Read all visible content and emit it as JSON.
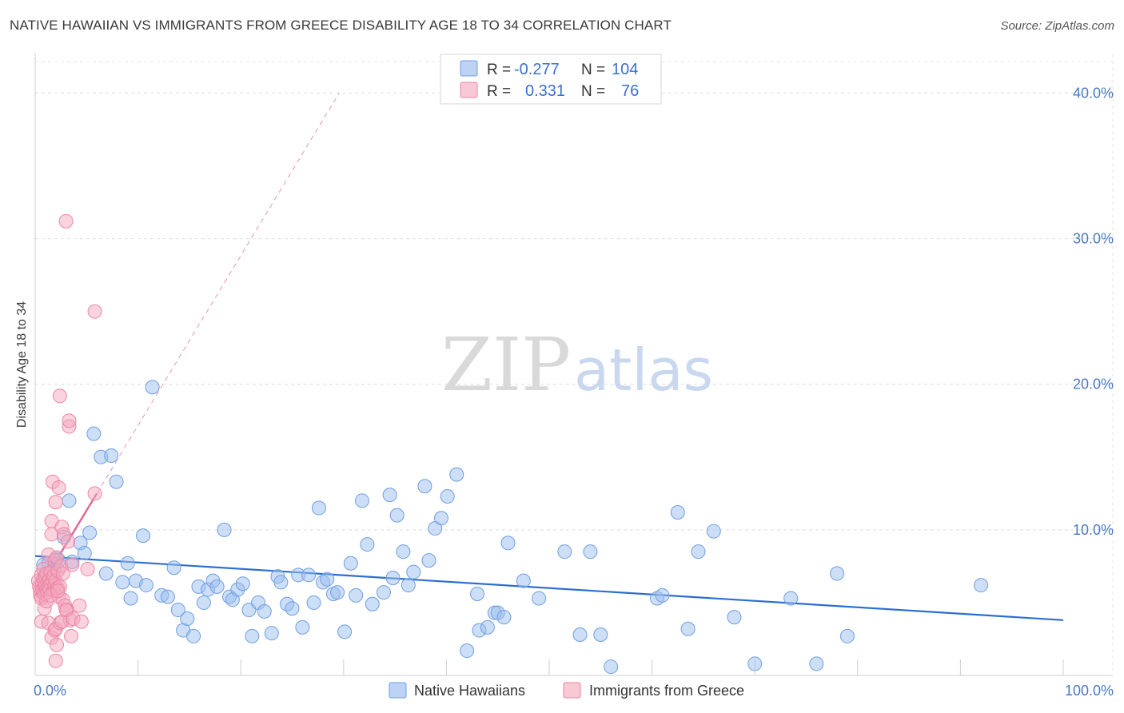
{
  "title": "NATIVE HAWAIIAN VS IMMIGRANTS FROM GREECE DISABILITY AGE 18 TO 34 CORRELATION CHART",
  "source": "Source: ZipAtlas.com",
  "watermark": {
    "zip": "ZIP",
    "atlas": "atlas"
  },
  "legend": {
    "r_label": "R =",
    "n_label": "N =",
    "items": [
      {
        "r": "-0.277",
        "n": "104",
        "color": "#9cbdf0"
      },
      {
        "r": "0.331",
        "n": "76",
        "color": "#f4a7bd"
      }
    ]
  },
  "chart_data": {
    "type": "scatter",
    "title": "NATIVE HAWAIIAN VS IMMIGRANTS FROM GREECE DISABILITY AGE 18 TO 34 CORRELATION CHART",
    "xlabel": "",
    "ylabel": "Disability Age 18 to 34",
    "xlim": [
      0,
      100
    ],
    "ylim": [
      0,
      42
    ],
    "x_tick_labels": [
      "0.0%",
      "100.0%"
    ],
    "y_ticks": [
      10,
      20,
      30,
      40
    ],
    "y_tick_labels": [
      "10.0%",
      "20.0%",
      "30.0%",
      "40.0%"
    ],
    "grid": true,
    "series": [
      {
        "name": "Native Hawaiians",
        "color": "#9cbdf0",
        "stroke": "#6f9fe0",
        "trend": {
          "x": [
            0,
            100
          ],
          "y": [
            8.2,
            3.8
          ],
          "color": "#2c6fd1"
        },
        "points": [
          [
            0.8,
            7.6
          ],
          [
            1.3,
            7.7
          ],
          [
            1.8,
            7.2
          ],
          [
            2.1,
            8.0
          ],
          [
            2.3,
            7.9
          ],
          [
            2.8,
            9.5
          ],
          [
            3.3,
            12.0
          ],
          [
            3.6,
            7.8
          ],
          [
            4.4,
            9.1
          ],
          [
            4.8,
            8.4
          ],
          [
            5.3,
            9.8
          ],
          [
            5.7,
            16.6
          ],
          [
            6.4,
            15.0
          ],
          [
            6.9,
            7.0
          ],
          [
            7.4,
            15.1
          ],
          [
            7.9,
            13.3
          ],
          [
            8.5,
            6.4
          ],
          [
            9.0,
            7.7
          ],
          [
            9.3,
            5.3
          ],
          [
            9.8,
            6.5
          ],
          [
            10.5,
            9.6
          ],
          [
            10.8,
            6.2
          ],
          [
            11.4,
            19.8
          ],
          [
            12.3,
            5.5
          ],
          [
            12.9,
            5.4
          ],
          [
            13.5,
            7.4
          ],
          [
            13.9,
            4.5
          ],
          [
            14.4,
            3.1
          ],
          [
            14.8,
            3.9
          ],
          [
            15.4,
            2.7
          ],
          [
            15.9,
            6.1
          ],
          [
            16.4,
            5.0
          ],
          [
            16.8,
            5.9
          ],
          [
            17.3,
            6.5
          ],
          [
            17.7,
            6.1
          ],
          [
            18.4,
            10.0
          ],
          [
            18.9,
            5.4
          ],
          [
            19.2,
            5.2
          ],
          [
            19.7,
            5.9
          ],
          [
            20.2,
            6.3
          ],
          [
            20.8,
            4.5
          ],
          [
            21.1,
            2.7
          ],
          [
            21.7,
            5.0
          ],
          [
            22.3,
            4.4
          ],
          [
            23.0,
            2.9
          ],
          [
            23.6,
            6.8
          ],
          [
            23.9,
            6.4
          ],
          [
            24.5,
            4.9
          ],
          [
            25.0,
            4.6
          ],
          [
            25.6,
            6.9
          ],
          [
            26.0,
            3.3
          ],
          [
            26.6,
            6.9
          ],
          [
            27.1,
            5.0
          ],
          [
            27.6,
            11.5
          ],
          [
            28.0,
            6.4
          ],
          [
            28.4,
            6.6
          ],
          [
            29.0,
            5.6
          ],
          [
            29.4,
            5.7
          ],
          [
            30.1,
            3.0
          ],
          [
            30.7,
            7.7
          ],
          [
            31.2,
            5.5
          ],
          [
            31.8,
            12.0
          ],
          [
            32.3,
            9.0
          ],
          [
            32.8,
            4.9
          ],
          [
            33.9,
            5.7
          ],
          [
            34.5,
            12.4
          ],
          [
            34.8,
            6.7
          ],
          [
            35.2,
            11.0
          ],
          [
            35.8,
            8.5
          ],
          [
            36.3,
            6.2
          ],
          [
            36.8,
            7.1
          ],
          [
            37.9,
            13.0
          ],
          [
            38.3,
            7.9
          ],
          [
            38.9,
            10.1
          ],
          [
            39.5,
            10.8
          ],
          [
            40.1,
            12.3
          ],
          [
            41.0,
            13.8
          ],
          [
            42.0,
            1.7
          ],
          [
            43.0,
            5.6
          ],
          [
            43.2,
            3.1
          ],
          [
            44.0,
            3.3
          ],
          [
            44.7,
            4.3
          ],
          [
            45.0,
            4.3
          ],
          [
            45.6,
            4.0
          ],
          [
            46.0,
            9.1
          ],
          [
            47.5,
            6.5
          ],
          [
            49.0,
            5.3
          ],
          [
            51.5,
            8.5
          ],
          [
            53.0,
            2.8
          ],
          [
            54.0,
            8.5
          ],
          [
            55.0,
            2.8
          ],
          [
            56.0,
            0.6
          ],
          [
            60.5,
            5.3
          ],
          [
            61.0,
            5.5
          ],
          [
            62.5,
            11.2
          ],
          [
            63.5,
            3.2
          ],
          [
            64.5,
            8.5
          ],
          [
            66.0,
            9.9
          ],
          [
            68.0,
            4.0
          ],
          [
            70.0,
            0.8
          ],
          [
            73.5,
            5.3
          ],
          [
            76.0,
            0.8
          ],
          [
            78.0,
            7.0
          ],
          [
            79.0,
            2.7
          ],
          [
            92.0,
            6.2
          ]
        ]
      },
      {
        "name": "Immigrants from Greece",
        "color": "#f4a7bd",
        "stroke": "#ec86a4",
        "trend": {
          "x": [
            0,
            6.0
          ],
          "y": [
            5.5,
            12.5
          ],
          "color": "#e0668d",
          "extrapolate_to_y": 40.0
        },
        "points": [
          [
            0.3,
            6.5
          ],
          [
            0.4,
            6.1
          ],
          [
            0.5,
            5.8
          ],
          [
            0.5,
            5.5
          ],
          [
            0.6,
            6.9
          ],
          [
            0.6,
            5.3
          ],
          [
            0.7,
            6.3
          ],
          [
            0.7,
            5.9
          ],
          [
            0.8,
            7.3
          ],
          [
            0.8,
            6.6
          ],
          [
            0.9,
            6.1
          ],
          [
            0.9,
            5.6
          ],
          [
            1.0,
            6.8
          ],
          [
            1.0,
            6.2
          ],
          [
            1.1,
            5.9
          ],
          [
            1.1,
            7.0
          ],
          [
            1.2,
            6.4
          ],
          [
            1.2,
            5.7
          ],
          [
            1.3,
            6.1
          ],
          [
            1.3,
            8.3
          ],
          [
            1.4,
            6.6
          ],
          [
            1.4,
            5.9
          ],
          [
            1.5,
            6.3
          ],
          [
            1.5,
            7.1
          ],
          [
            1.6,
            9.7
          ],
          [
            1.6,
            10.6
          ],
          [
            1.7,
            13.3
          ],
          [
            1.7,
            6.5
          ],
          [
            1.8,
            5.8
          ],
          [
            1.8,
            6.8
          ],
          [
            1.9,
            6.2
          ],
          [
            1.9,
            7.9
          ],
          [
            2.0,
            11.9
          ],
          [
            2.0,
            6.5
          ],
          [
            2.1,
            5.9
          ],
          [
            2.1,
            8.1
          ],
          [
            2.2,
            7.2
          ],
          [
            2.2,
            6.0
          ],
          [
            2.3,
            12.9
          ],
          [
            2.3,
            5.4
          ],
          [
            2.4,
            19.2
          ],
          [
            2.4,
            6.1
          ],
          [
            2.5,
            7.5
          ],
          [
            2.6,
            10.2
          ],
          [
            2.7,
            5.2
          ],
          [
            2.8,
            9.7
          ],
          [
            2.9,
            4.8
          ],
          [
            3.0,
            31.2
          ],
          [
            3.1,
            4.5
          ],
          [
            3.2,
            9.2
          ],
          [
            3.3,
            17.1
          ],
          [
            3.3,
            17.5
          ],
          [
            3.4,
            3.8
          ],
          [
            3.5,
            2.7
          ],
          [
            3.6,
            7.6
          ],
          [
            0.6,
            3.7
          ],
          [
            0.9,
            4.6
          ],
          [
            1.3,
            3.6
          ],
          [
            1.6,
            2.6
          ],
          [
            1.9,
            3.1
          ],
          [
            2.0,
            3.2
          ],
          [
            2.1,
            2.1
          ],
          [
            2.0,
            1.0
          ],
          [
            2.4,
            3.6
          ],
          [
            2.6,
            3.7
          ],
          [
            3.0,
            4.5
          ],
          [
            3.7,
            3.9
          ],
          [
            4.3,
            4.8
          ],
          [
            4.5,
            3.7
          ],
          [
            5.1,
            7.3
          ],
          [
            5.8,
            12.5
          ],
          [
            5.8,
            25.0
          ],
          [
            1.1,
            5.1
          ],
          [
            1.5,
            5.5
          ],
          [
            2.2,
            5.8
          ],
          [
            2.7,
            7.0
          ]
        ]
      }
    ]
  },
  "bottom_legend": [
    "Native Hawaiians",
    "Immigrants from Greece"
  ]
}
